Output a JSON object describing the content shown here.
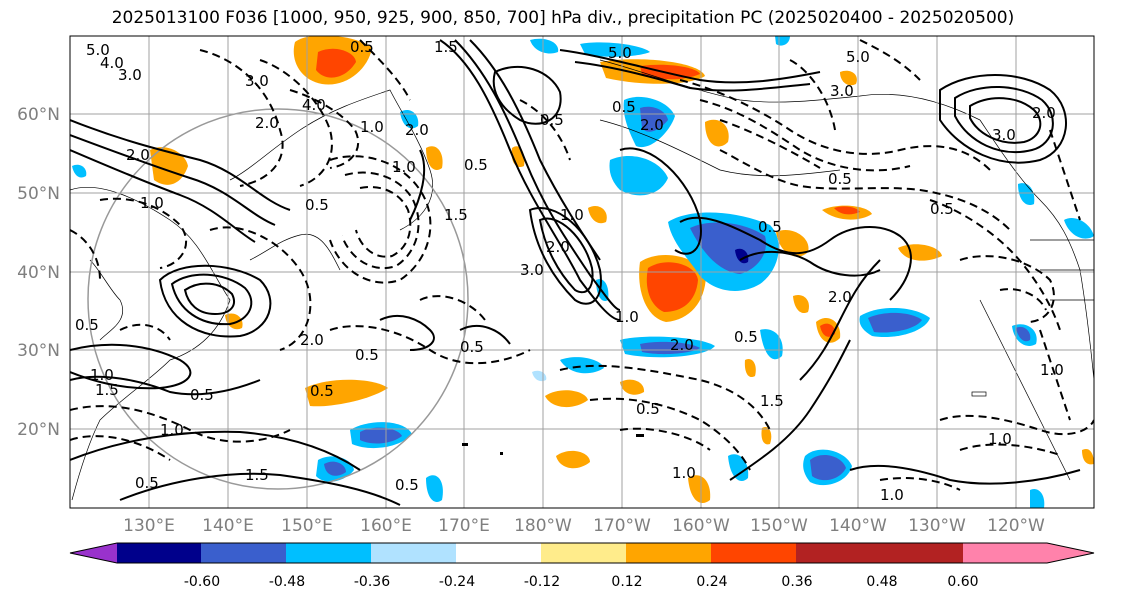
{
  "title": "2025013100 F036 [1000, 950, 925, 900, 850, 700] hPa div., precipitation PC (2025020400 - 2025020500)",
  "map": {
    "lat_labels": [
      "60°N",
      "50°N",
      "40°N",
      "30°N",
      "20°N"
    ],
    "lon_labels": [
      "130°E",
      "140°E",
      "150°E",
      "160°E",
      "170°E",
      "180°W",
      "170°W",
      "160°W",
      "150°W",
      "140°W",
      "130°W",
      "120°W"
    ],
    "contour_labels": [
      "5.0",
      "4.0",
      "3.0",
      "3.0",
      "2.0",
      "4.0",
      "0.5",
      "1.0",
      "1.5",
      "5.0",
      "2.0",
      "1.0",
      "0.5",
      "1.0",
      "2.0",
      "0.5",
      "3.0",
      "1.0",
      "2.0",
      "0.5",
      "2.0",
      "0.5",
      "1.5",
      "1.0",
      "0.5",
      "2.0",
      "0.5",
      "1.5",
      "0.5",
      "0.5",
      "1.0",
      "0.5",
      "0.5",
      "1.0",
      "0.5",
      "1.5",
      "2.0",
      "1.0",
      "0.5",
      "1.5",
      "0.5",
      "0.5",
      "3.0",
      "5.0",
      "3.0",
      "2.0",
      "0.5",
      "0.5",
      "2.0",
      "1.0",
      "1.0",
      "1.0"
    ]
  },
  "colorbar": {
    "ticks": [
      "-0.60",
      "-0.48",
      "-0.36",
      "-0.24",
      "-0.12",
      "0.12",
      "0.24",
      "0.36",
      "0.48",
      "0.60"
    ],
    "colors": [
      "#9932cc",
      "#00008b",
      "#3a5fcd",
      "#00bfff",
      "#b0e2ff",
      "#ffffff",
      "#ffec8b",
      "#ffa500",
      "#ff4500",
      "#b22222",
      "#ff82ab"
    ]
  }
}
